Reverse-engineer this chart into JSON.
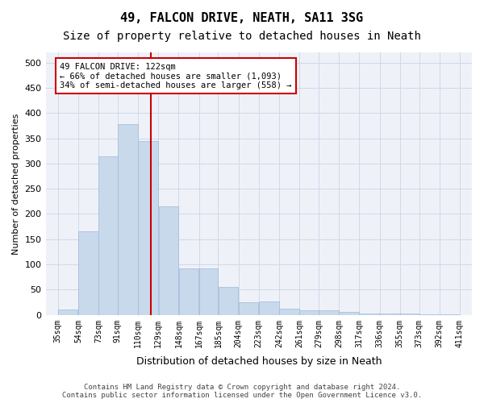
{
  "title": "49, FALCON DRIVE, NEATH, SA11 3SG",
  "subtitle": "Size of property relative to detached houses in Neath",
  "xlabel": "Distribution of detached houses by size in Neath",
  "ylabel": "Number of detached properties",
  "bar_color": "#c9d9ec",
  "bar_edge_color": "#a0b8d8",
  "grid_color": "#d0d8e8",
  "background_color": "#eef2f8",
  "vline_x": 122,
  "vline_color": "#cc0000",
  "annotation_text": "49 FALCON DRIVE: 122sqm\n← 66% of detached houses are smaller (1,093)\n34% of semi-detached houses are larger (558) →",
  "annotation_box_color": "#ffffff",
  "annotation_box_edge": "#cc0000",
  "bin_edges": [
    35,
    54,
    73,
    91,
    110,
    129,
    148,
    167,
    185,
    204,
    223,
    242,
    261,
    279,
    298,
    317,
    336,
    355,
    373,
    392,
    411
  ],
  "bar_heights": [
    11,
    165,
    314,
    378,
    345,
    215,
    93,
    93,
    55,
    25,
    27,
    13,
    10,
    10,
    6,
    3,
    3,
    3,
    2,
    2
  ],
  "tick_labels": [
    "35sqm",
    "54sqm",
    "73sqm",
    "91sqm",
    "110sqm",
    "129sqm",
    "148sqm",
    "167sqm",
    "185sqm",
    "204sqm",
    "223sqm",
    "242sqm",
    "261sqm",
    "279sqm",
    "298sqm",
    "317sqm",
    "336sqm",
    "355sqm",
    "373sqm",
    "392sqm",
    "411sqm"
  ],
  "ylim": [
    0,
    520
  ],
  "yticks": [
    0,
    50,
    100,
    150,
    200,
    250,
    300,
    350,
    400,
    450,
    500
  ],
  "footer_text": "Contains HM Land Registry data © Crown copyright and database right 2024.\nContains public sector information licensed under the Open Government Licence v3.0.",
  "title_fontsize": 11,
  "subtitle_fontsize": 10,
  "xlabel_fontsize": 9,
  "ylabel_fontsize": 8,
  "tick_fontsize": 7,
  "footer_fontsize": 6.5
}
